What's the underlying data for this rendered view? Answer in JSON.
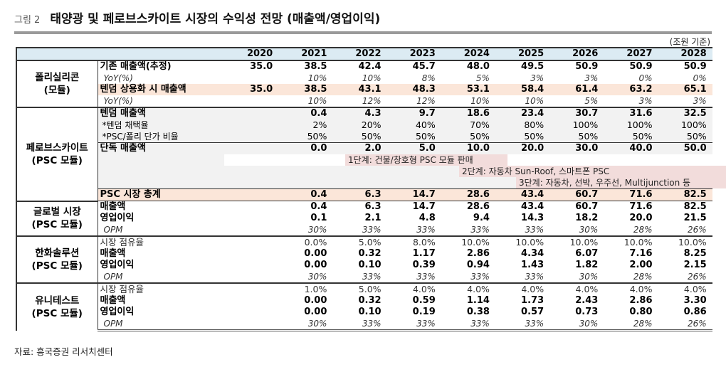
{
  "figure": {
    "label": "그림 2",
    "title": "태양광 및 페로브스카이트 시장의 수익성 전망 (매출액/영업이익)",
    "unit": "(조원 기준)",
    "source": "자료: 흥국증권 리서치센터"
  },
  "years": [
    "2020",
    "2021",
    "2022",
    "2023",
    "2024",
    "2025",
    "2026",
    "2027",
    "2028"
  ],
  "poly": {
    "category": "폴리실리콘\n(모듈)",
    "rows": [
      {
        "label": "기존 매출액(추정)",
        "values": [
          "35.0",
          "38.5",
          "42.4",
          "45.7",
          "48.0",
          "49.5",
          "50.9",
          "50.9",
          "50.9"
        ]
      },
      {
        "label": "YoY(%)",
        "values": [
          "",
          "10%",
          "10%",
          "8%",
          "5%",
          "3%",
          "3%",
          "0%",
          "0%"
        ]
      },
      {
        "label": "텐덤 상용화 시 매출액",
        "values": [
          "35.0",
          "38.5",
          "43.1",
          "48.3",
          "53.1",
          "58.4",
          "61.4",
          "63.2",
          "65.1"
        ]
      },
      {
        "label": "YoY(%)",
        "values": [
          "",
          "10%",
          "12%",
          "12%",
          "10%",
          "10%",
          "5%",
          "3%",
          "3%"
        ]
      }
    ]
  },
  "psc": {
    "category": "페로브스카이트\n(PSC 모듈)",
    "rows": [
      {
        "label": "텐덤 매출액",
        "values": [
          "",
          "0.4",
          "4.3",
          "9.7",
          "18.6",
          "23.4",
          "30.7",
          "31.6",
          "32.5"
        ]
      },
      {
        "label": "*텐덤 채택율",
        "values": [
          "",
          "2%",
          "20%",
          "40%",
          "70%",
          "80%",
          "100%",
          "100%",
          "100%"
        ]
      },
      {
        "label": "*PSC/폴리 단가 비율",
        "values": [
          "",
          "50%",
          "50%",
          "50%",
          "50%",
          "50%",
          "50%",
          "50%",
          "50%"
        ]
      },
      {
        "label": "단독 매출액",
        "values": [
          "",
          "0.0",
          "2.0",
          "5.0",
          "10.0",
          "20.0",
          "30.0",
          "40.0",
          "50.0"
        ]
      },
      {
        "label": "PSC 시장 총계",
        "values": [
          "",
          "0.4",
          "6.3",
          "14.7",
          "28.6",
          "43.4",
          "60.7",
          "71.6",
          "82.5"
        ]
      }
    ],
    "stages": [
      "1단계: 건물/창호형 PSC 모듈 판매",
      "2단계: 자동차 Sun-Roof, 스마트폰 PSC",
      "3단계: 자동차, 선박, 우주선, Multijunction 등"
    ]
  },
  "global": {
    "category": "글로벌 시장\n(PSC 모듈)",
    "rows": [
      {
        "label": "매출액",
        "values": [
          "",
          "0.4",
          "6.3",
          "14.7",
          "28.6",
          "43.4",
          "60.7",
          "71.6",
          "82.5"
        ]
      },
      {
        "label": "영업이익",
        "values": [
          "",
          "0.1",
          "2.1",
          "4.8",
          "9.4",
          "14.3",
          "18.2",
          "20.0",
          "21.5"
        ]
      },
      {
        "label": "OPM",
        "values": [
          "",
          "30%",
          "33%",
          "33%",
          "33%",
          "33%",
          "30%",
          "28%",
          "26%"
        ]
      }
    ]
  },
  "hanwha": {
    "category": "한화솔루션\n(PSC 모듈)",
    "rows": [
      {
        "label": "시장 점유율",
        "values": [
          "",
          "0.0%",
          "5.0%",
          "8.0%",
          "10.0%",
          "10.0%",
          "10.0%",
          "10.0%",
          "10.0%"
        ]
      },
      {
        "label": "매출액",
        "values": [
          "",
          "0.00",
          "0.32",
          "1.17",
          "2.86",
          "4.34",
          "6.07",
          "7.16",
          "8.25"
        ]
      },
      {
        "label": "영업이익",
        "values": [
          "",
          "0.00",
          "0.10",
          "0.39",
          "0.94",
          "1.43",
          "1.82",
          "2.00",
          "2.15"
        ]
      },
      {
        "label": "OPM",
        "values": [
          "",
          "30%",
          "33%",
          "33%",
          "33%",
          "33%",
          "30%",
          "28%",
          "26%"
        ]
      }
    ]
  },
  "unitest": {
    "category": "유니테스트\n(PSC 모듈)",
    "rows": [
      {
        "label": "시장 점유율",
        "values": [
          "",
          "1.0%",
          "5.0%",
          "4.0%",
          "4.0%",
          "4.0%",
          "4.0%",
          "4.0%",
          "4.0%"
        ]
      },
      {
        "label": "매출액",
        "values": [
          "",
          "0.00",
          "0.32",
          "0.59",
          "1.14",
          "1.73",
          "2.43",
          "2.86",
          "3.30"
        ]
      },
      {
        "label": "영업이익",
        "values": [
          "",
          "0.00",
          "0.10",
          "0.19",
          "0.38",
          "0.57",
          "0.73",
          "0.80",
          "0.86"
        ]
      },
      {
        "label": "OPM",
        "values": [
          "",
          "30%",
          "33%",
          "33%",
          "33%",
          "33%",
          "30%",
          "28%",
          "26%"
        ]
      }
    ]
  },
  "colors": {
    "header_bg": "#dcebf3",
    "highlight_bg": "#fbe6d9",
    "stage_bg": "#f2dcdb",
    "grey_bg": "#f2f2f2"
  }
}
